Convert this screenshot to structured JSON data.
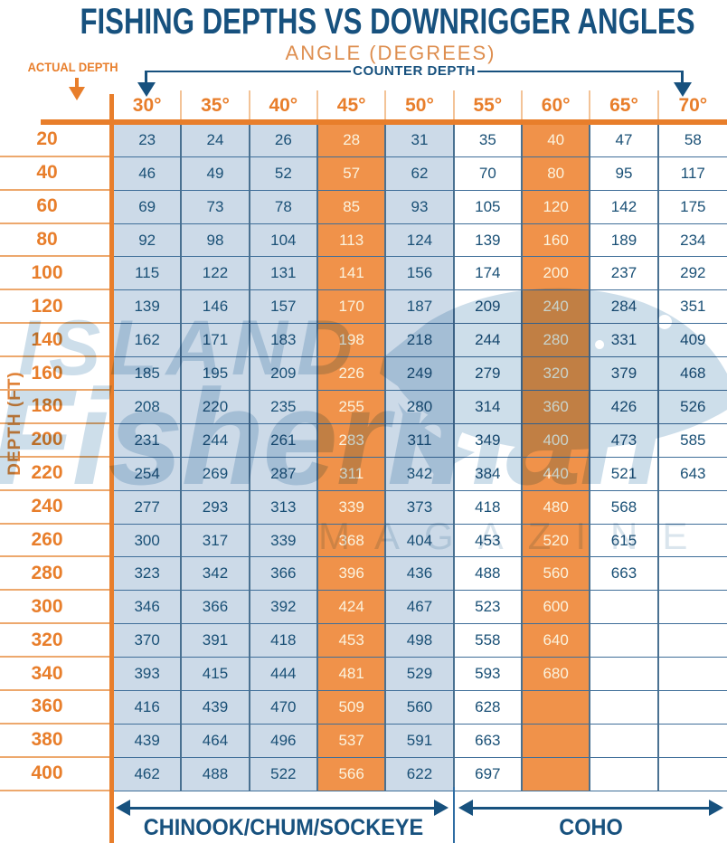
{
  "header": {
    "title": "FISHING DEPTHS VS DOWNRIGGER ANGLES",
    "subtitle": "ANGLE (DEGREES)",
    "actual_depth_label": "ACTUAL DEPTH",
    "counter_depth_label": "COUNTER DEPTH"
  },
  "axis": {
    "y_label": "DEPTH (FT)"
  },
  "footer": {
    "left_species_label": "CHINOOK/CHUM/SOCKEYE",
    "right_species_label": "COHO"
  },
  "watermark": {
    "line1": "ISLAND",
    "line2": "Fisherman",
    "line3": "MAGAZINE"
  },
  "colors": {
    "navy": "#17517e",
    "orange": "#e87e2b",
    "cell_orange": "#f0924a",
    "cell_blue": "#ccdae8",
    "cream_text": "#fbf3de",
    "watermark_blue": "#a4c2d9"
  },
  "chart_data": {
    "type": "table",
    "title": "FISHING DEPTHS VS DOWNRIGGER ANGLES",
    "xlabel": "ANGLE (DEGREES)",
    "ylabel": "DEPTH (FT)",
    "columns": [
      "30°",
      "35°",
      "40°",
      "45°",
      "50°",
      "55°",
      "60°",
      "65°",
      "70°"
    ],
    "column_styles": [
      "blue",
      "blue",
      "blue",
      "orange",
      "blue",
      "white",
      "orange",
      "white",
      "white"
    ],
    "depths": [
      20,
      40,
      60,
      80,
      100,
      120,
      140,
      160,
      180,
      200,
      220,
      240,
      260,
      280,
      300,
      320,
      340,
      360,
      380,
      400
    ],
    "rows": [
      [
        23,
        24,
        26,
        28,
        31,
        35,
        40,
        47,
        58
      ],
      [
        46,
        49,
        52,
        57,
        62,
        70,
        80,
        95,
        117
      ],
      [
        69,
        73,
        78,
        85,
        93,
        105,
        120,
        142,
        175
      ],
      [
        92,
        98,
        104,
        113,
        124,
        139,
        160,
        189,
        234
      ],
      [
        115,
        122,
        131,
        141,
        156,
        174,
        200,
        237,
        292
      ],
      [
        139,
        146,
        157,
        170,
        187,
        209,
        240,
        284,
        351
      ],
      [
        162,
        171,
        183,
        198,
        218,
        244,
        280,
        331,
        409
      ],
      [
        185,
        195,
        209,
        226,
        249,
        279,
        320,
        379,
        468
      ],
      [
        208,
        220,
        235,
        255,
        280,
        314,
        360,
        426,
        526
      ],
      [
        231,
        244,
        261,
        283,
        311,
        349,
        400,
        473,
        585
      ],
      [
        254,
        269,
        287,
        311,
        342,
        384,
        440,
        521,
        643
      ],
      [
        277,
        293,
        313,
        339,
        373,
        418,
        480,
        568,
        null
      ],
      [
        300,
        317,
        339,
        368,
        404,
        453,
        520,
        615,
        null
      ],
      [
        323,
        342,
        366,
        396,
        436,
        488,
        560,
        663,
        null
      ],
      [
        346,
        366,
        392,
        424,
        467,
        523,
        600,
        null,
        null
      ],
      [
        370,
        391,
        418,
        453,
        498,
        558,
        640,
        null,
        null
      ],
      [
        393,
        415,
        444,
        481,
        529,
        593,
        680,
        null,
        null
      ],
      [
        416,
        439,
        470,
        509,
        560,
        628,
        null,
        null,
        null
      ],
      [
        439,
        464,
        496,
        537,
        591,
        663,
        null,
        null,
        null
      ],
      [
        462,
        488,
        522,
        566,
        622,
        697,
        null,
        null,
        null
      ]
    ],
    "species_spans": [
      {
        "label": "CHINOOK/CHUM/SOCKEYE",
        "columns": [
          "30°",
          "50°"
        ]
      },
      {
        "label": "COHO",
        "columns": [
          "55°",
          "70°"
        ]
      }
    ],
    "legend_position": "none",
    "grid": true
  }
}
